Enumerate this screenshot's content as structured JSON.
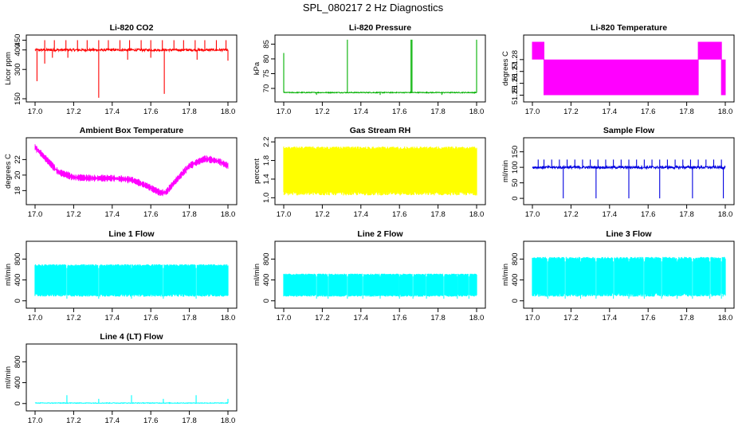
{
  "figure": {
    "title": "SPL_080217  2 Hz Diagnostics"
  },
  "chart_data": [
    {
      "type": "line",
      "title": "Li-820 CO2",
      "xlabel": "",
      "ylabel": "Licor ppm",
      "x_ticks": [
        "17.0",
        "17.2",
        "17.4",
        "17.6",
        "17.8",
        "18.0"
      ],
      "y_ticks": [
        "150",
        "300",
        "400",
        "450"
      ],
      "xlim": [
        17.0,
        18.0
      ],
      "ylim": [
        150,
        460
      ],
      "color": "#ff0000",
      "baseline": 400,
      "noise": 6,
      "lo": 155,
      "hi": 455,
      "spikes": [
        [
          17.05,
          450
        ],
        [
          17.1,
          450
        ],
        [
          17.16,
          450
        ],
        [
          17.22,
          450
        ],
        [
          17.27,
          450
        ],
        [
          17.33,
          450
        ],
        [
          17.38,
          450
        ],
        [
          17.44,
          450
        ],
        [
          17.49,
          450
        ],
        [
          17.55,
          450
        ],
        [
          17.6,
          450
        ],
        [
          17.66,
          450
        ],
        [
          17.72,
          450
        ],
        [
          17.77,
          450
        ],
        [
          17.83,
          450
        ],
        [
          17.88,
          450
        ],
        [
          17.94,
          450
        ],
        [
          17.99,
          450
        ],
        [
          17.01,
          240
        ],
        [
          17.05,
          330
        ],
        [
          17.09,
          360
        ],
        [
          17.17,
          360
        ],
        [
          17.33,
          155
        ],
        [
          17.48,
          350
        ],
        [
          17.6,
          360
        ],
        [
          17.67,
          175
        ],
        [
          17.84,
          350
        ],
        [
          18.0,
          345
        ]
      ]
    },
    {
      "type": "line",
      "title": "Li-820 Pressure",
      "xlabel": "",
      "ylabel": "kPa",
      "x_ticks": [
        "17.0",
        "17.2",
        "17.4",
        "17.6",
        "17.8",
        "18.0"
      ],
      "y_ticks": [
        "70",
        "75",
        "80",
        "85"
      ],
      "xlim": [
        17.0,
        18.0
      ],
      "ylim": [
        66.5,
        87
      ],
      "color": "#00b000",
      "baseline": 68.6,
      "noise": 0.15,
      "lo": 66.5,
      "hi": 87,
      "spikes": [
        [
          17.0,
          82
        ],
        [
          17.33,
          86.5
        ],
        [
          17.66,
          86.5
        ],
        [
          17.665,
          86.5
        ],
        [
          18.0,
          86.5
        ],
        [
          17.17,
          67.8
        ],
        [
          17.5,
          67.8
        ],
        [
          17.82,
          67.8
        ]
      ]
    },
    {
      "type": "line",
      "title": "Li-820 Temperature",
      "xlabel": "",
      "ylabel": "degrees C",
      "x_ticks": [
        "17.0",
        "17.2",
        "17.4",
        "17.6",
        "17.8",
        "18.0"
      ],
      "y_ticks": [
        "51.25",
        "51.26",
        "51.27",
        "51.28"
      ],
      "xlim": [
        17.0,
        18.0
      ],
      "ylim": [
        51.247,
        51.298
      ],
      "color": "#ff00ff",
      "levels": [
        51.25,
        51.28,
        51.295
      ],
      "segments": [
        [
          17.0,
          17.06,
          51.28,
          51.295
        ],
        [
          17.06,
          17.86,
          51.25,
          51.28
        ],
        [
          17.86,
          17.98,
          51.28,
          51.295
        ],
        [
          17.98,
          18.0,
          51.25,
          51.28
        ]
      ]
    },
    {
      "type": "line",
      "title": "Ambient Box Temperature",
      "xlabel": "",
      "ylabel": "degrees C",
      "x_ticks": [
        "17.0",
        "17.2",
        "17.4",
        "17.6",
        "17.8",
        "18.0"
      ],
      "y_ticks": [
        "18",
        "20",
        "22"
      ],
      "xlim": [
        17.0,
        18.0
      ],
      "ylim": [
        16.6,
        24.4
      ],
      "color": "#ff00ff",
      "curve": [
        [
          17.0,
          23.6
        ],
        [
          17.06,
          22.0
        ],
        [
          17.12,
          20.4
        ],
        [
          17.2,
          19.7
        ],
        [
          17.3,
          19.6
        ],
        [
          17.4,
          19.6
        ],
        [
          17.5,
          19.4
        ],
        [
          17.58,
          18.6
        ],
        [
          17.65,
          17.7
        ],
        [
          17.68,
          17.8
        ],
        [
          17.72,
          19.0
        ],
        [
          17.8,
          21.2
        ],
        [
          17.88,
          22.1
        ],
        [
          17.95,
          21.8
        ],
        [
          18.0,
          21.2
        ]
      ],
      "noise": 0.45
    },
    {
      "type": "line",
      "title": "Gas Stream RH",
      "xlabel": "",
      "ylabel": "percent",
      "x_ticks": [
        "17.0",
        "17.2",
        "17.4",
        "17.6",
        "17.8",
        "18.0"
      ],
      "y_ticks": [
        "1.0",
        "1.4",
        "1.8",
        "2.2"
      ],
      "xlim": [
        17.0,
        18.0
      ],
      "ylim": [
        0.92,
        2.22
      ],
      "color": "#ffff00",
      "band": [
        1.05,
        2.1
      ]
    },
    {
      "type": "line",
      "title": "Sample Flow",
      "xlabel": "",
      "ylabel": "ml/min",
      "x_ticks": [
        "17.0",
        "17.2",
        "17.4",
        "17.6",
        "17.8",
        "18.0"
      ],
      "y_ticks": [
        "0",
        "50",
        "100",
        "150"
      ],
      "xlim": [
        17.0,
        18.0
      ],
      "ylim": [
        -10,
        185
      ],
      "color": "#0000e0",
      "baseline": 100,
      "noise": 4,
      "lo": -5,
      "hi": 130,
      "spikes": [
        [
          17.03,
          125
        ],
        [
          17.06,
          125
        ],
        [
          17.1,
          125
        ],
        [
          17.14,
          125
        ],
        [
          17.18,
          125
        ],
        [
          17.22,
          125
        ],
        [
          17.26,
          125
        ],
        [
          17.3,
          125
        ],
        [
          17.34,
          125
        ],
        [
          17.38,
          125
        ],
        [
          17.42,
          125
        ],
        [
          17.46,
          125
        ],
        [
          17.5,
          125
        ],
        [
          17.54,
          125
        ],
        [
          17.58,
          125
        ],
        [
          17.62,
          125
        ],
        [
          17.66,
          125
        ],
        [
          17.7,
          125
        ],
        [
          17.74,
          125
        ],
        [
          17.78,
          125
        ],
        [
          17.82,
          125
        ],
        [
          17.86,
          125
        ],
        [
          17.9,
          125
        ],
        [
          17.94,
          125
        ],
        [
          17.98,
          125
        ],
        [
          17.16,
          0
        ],
        [
          17.33,
          0
        ],
        [
          17.5,
          0
        ],
        [
          17.66,
          0
        ],
        [
          17.83,
          0
        ],
        [
          17.99,
          0
        ]
      ]
    },
    {
      "type": "line",
      "title": "Line 1 Flow",
      "xlabel": "",
      "ylabel": "ml/min",
      "x_ticks": [
        "17.0",
        "17.2",
        "17.4",
        "17.6",
        "17.8",
        "18.0"
      ],
      "y_ticks": [
        "0",
        "400",
        "800"
      ],
      "xlim": [
        17.0,
        18.0
      ],
      "ylim": [
        -80,
        1080
      ],
      "color": "#00ffff",
      "band": [
        80,
        700
      ],
      "gaps": [
        17.165,
        17.33,
        17.5,
        17.665,
        17.835
      ]
    },
    {
      "type": "line",
      "title": "Line 2 Flow",
      "xlabel": "",
      "ylabel": "ml/min",
      "x_ticks": [
        "17.0",
        "17.2",
        "17.4",
        "17.6",
        "17.8",
        "18.0"
      ],
      "y_ticks": [
        "0",
        "400",
        "800"
      ],
      "xlim": [
        17.0,
        18.0
      ],
      "ylim": [
        -80,
        1080
      ],
      "color": "#00ffff",
      "band": [
        80,
        520
      ],
      "gaps": [
        17.17,
        17.23,
        17.33,
        17.41,
        17.5,
        17.6,
        17.67,
        17.74,
        17.83,
        17.9,
        17.96
      ]
    },
    {
      "type": "line",
      "title": "Line 3 Flow",
      "xlabel": "",
      "ylabel": "ml/min",
      "x_ticks": [
        "17.0",
        "17.2",
        "17.4",
        "17.6",
        "17.8",
        "18.0"
      ],
      "y_ticks": [
        "0",
        "400",
        "800"
      ],
      "xlim": [
        17.0,
        18.0
      ],
      "ylim": [
        -80,
        1080
      ],
      "color": "#00ffff",
      "band": [
        80,
        840
      ],
      "gaps": [
        17.08,
        17.17,
        17.25,
        17.33,
        17.42,
        17.5,
        17.58,
        17.67,
        17.75,
        17.83,
        17.92,
        17.98
      ]
    },
    {
      "type": "line",
      "title": "Line 4 (LT) Flow",
      "xlabel": "",
      "ylabel": "ml/min",
      "x_ticks": [
        "17.0",
        "17.2",
        "17.4",
        "17.6",
        "17.8",
        "18.0"
      ],
      "y_ticks": [
        "0",
        "400",
        "800"
      ],
      "xlim": [
        17.0,
        18.0
      ],
      "ylim": [
        -80,
        1080
      ],
      "color": "#00ffff",
      "baseline": 10,
      "noise": 6,
      "lo": -5,
      "hi": 200,
      "spikes": [
        [
          17.165,
          160
        ],
        [
          17.33,
          90
        ],
        [
          17.5,
          160
        ],
        [
          17.665,
          90
        ],
        [
          17.835,
          160
        ],
        [
          18.0,
          90
        ]
      ]
    }
  ]
}
